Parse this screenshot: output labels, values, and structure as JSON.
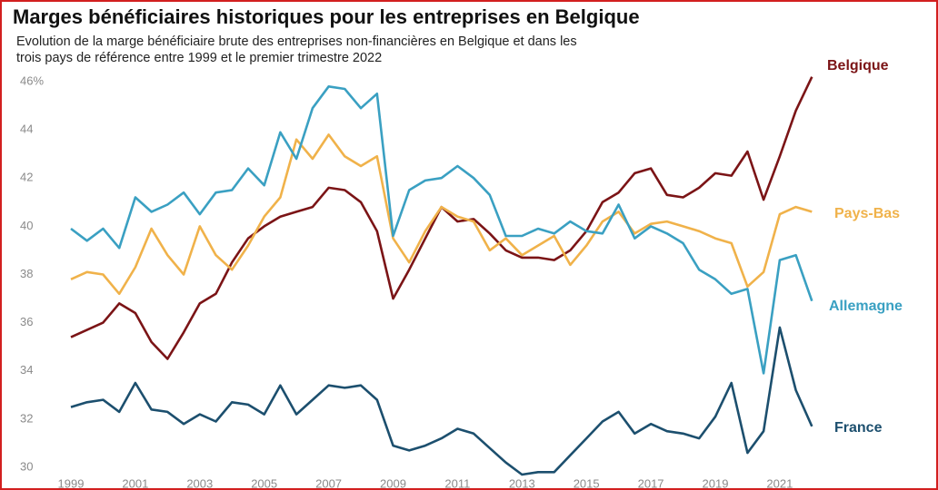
{
  "chart_data": {
    "type": "line",
    "title": "Marges bénéficiaires historiques pour les entreprises en Belgique",
    "subtitle": [
      "Evolution de la marge bénéficiaire brute des entreprises non-financières en Belgique et dans les",
      "trois pays de référence entre 1999 et le premier trimestre 2022"
    ],
    "x": [
      1999,
      1999.5,
      2000,
      2000.5,
      2001,
      2001.5,
      2002,
      2002.5,
      2003,
      2003.5,
      2004,
      2004.5,
      2005,
      2005.5,
      2006,
      2006.5,
      2007,
      2007.5,
      2008,
      2008.5,
      2009,
      2009.5,
      2010,
      2010.5,
      2011,
      2011.5,
      2012,
      2012.5,
      2013,
      2013.5,
      2014,
      2014.5,
      2015,
      2015.5,
      2016,
      2016.5,
      2017,
      2017.5,
      2018,
      2018.5,
      2019,
      2019.5,
      2020,
      2020.5,
      2021,
      2021.5,
      2022
    ],
    "series": [
      {
        "name": "Belgique",
        "color": "#7b1416",
        "values": [
          35.4,
          35.7,
          36.0,
          36.8,
          36.4,
          35.2,
          34.5,
          35.6,
          36.8,
          37.2,
          38.5,
          39.5,
          40.0,
          40.4,
          40.6,
          40.8,
          41.6,
          41.5,
          41.0,
          39.8,
          37.0,
          38.2,
          39.5,
          40.8,
          40.2,
          40.3,
          39.7,
          39.0,
          38.7,
          38.7,
          38.6,
          39.0,
          39.8,
          41.0,
          41.4,
          42.2,
          42.4,
          41.3,
          41.2,
          41.6,
          42.2,
          42.1,
          43.1,
          41.1,
          42.9,
          44.8,
          46.2
        ]
      },
      {
        "name": "Pays-Bas",
        "color": "#f0b24a",
        "values": [
          37.8,
          38.1,
          38.0,
          37.2,
          38.3,
          39.9,
          38.8,
          38.0,
          40.0,
          38.8,
          38.2,
          39.2,
          40.4,
          41.2,
          43.6,
          42.8,
          43.8,
          42.9,
          42.5,
          42.9,
          39.5,
          38.5,
          39.8,
          40.8,
          40.4,
          40.2,
          39.0,
          39.5,
          38.8,
          39.2,
          39.6,
          38.4,
          39.2,
          40.2,
          40.6,
          39.7,
          40.1,
          40.2,
          40.0,
          39.8,
          39.5,
          39.3,
          37.5,
          38.1,
          40.5,
          40.8,
          40.6
        ]
      },
      {
        "name": "Allemagne",
        "color": "#3aa0c2",
        "values": [
          39.9,
          39.4,
          39.9,
          39.1,
          41.2,
          40.6,
          40.9,
          41.4,
          40.5,
          41.4,
          41.5,
          42.4,
          41.7,
          43.9,
          42.8,
          44.9,
          45.8,
          45.7,
          44.9,
          45.5,
          39.6,
          41.5,
          41.9,
          42.0,
          42.5,
          42.0,
          41.3,
          39.6,
          39.6,
          39.9,
          39.7,
          40.2,
          39.8,
          39.7,
          40.9,
          39.5,
          40.0,
          39.7,
          39.3,
          38.2,
          37.8,
          37.2,
          37.4,
          33.9,
          38.6,
          38.8,
          36.9
        ]
      },
      {
        "name": "France",
        "color": "#1c4f6e",
        "values": [
          32.5,
          32.7,
          32.8,
          32.3,
          33.5,
          32.4,
          32.3,
          31.8,
          32.2,
          31.9,
          32.7,
          32.6,
          32.2,
          33.4,
          32.2,
          32.8,
          33.4,
          33.3,
          33.4,
          32.8,
          30.9,
          30.7,
          30.9,
          31.2,
          31.6,
          31.4,
          30.8,
          30.2,
          29.7,
          29.8,
          29.8,
          30.5,
          31.2,
          31.9,
          32.3,
          31.4,
          31.8,
          31.5,
          31.4,
          31.2,
          32.1,
          33.5,
          30.6,
          31.5,
          35.8,
          33.2,
          31.7
        ]
      }
    ],
    "xlim": [
      1998.6,
      2022.4
    ],
    "xticks": [
      1999,
      2001,
      2003,
      2005,
      2007,
      2009,
      2011,
      2013,
      2015,
      2017,
      2019,
      2021
    ],
    "ylim": [
      29.5,
      46.5
    ],
    "yticks": [
      {
        "value": 46,
        "label": "46%"
      },
      44,
      42,
      40,
      38,
      36,
      34,
      32,
      30
    ]
  }
}
